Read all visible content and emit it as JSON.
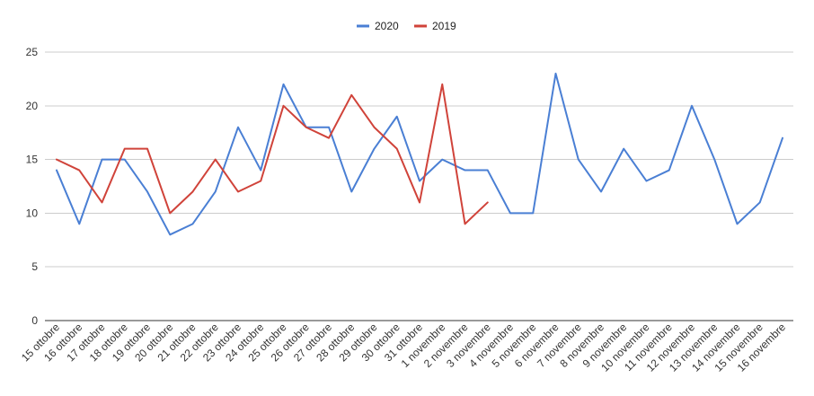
{
  "chart_data": {
    "type": "line",
    "categories": [
      "15 ottobre",
      "16 ottobre",
      "17 ottobre",
      "18 ottobre",
      "19 ottobre",
      "20 ottobre",
      "21 ottobre",
      "22 ottobre",
      "23 ottobre",
      "24 ottobre",
      "25 ottobre",
      "26 ottobre",
      "27 ottobre",
      "28 ottobre",
      "29 ottobre",
      "30 ottobre",
      "31 ottobre",
      "1 novembre",
      "2 novembre",
      "3 novembre",
      "4 novembre",
      "5 novembre",
      "6 novembre",
      "7 novembre",
      "8 novembre",
      "9 novembre",
      "10 novembre",
      "11 novembre",
      "12 novembre",
      "13 novembre",
      "14 novembre",
      "15 novembre",
      "16 novembre"
    ],
    "series": [
      {
        "name": "2020",
        "color": "#4a7fd4",
        "values": [
          14,
          9,
          15,
          15,
          12,
          8,
          9,
          12,
          18,
          14,
          22,
          18,
          18,
          12,
          16,
          19,
          13,
          15,
          14,
          14,
          10,
          10,
          23,
          15,
          12,
          16,
          13,
          14,
          20,
          15,
          9,
          11,
          17
        ]
      },
      {
        "name": "2019",
        "color": "#d0433a",
        "values": [
          15,
          14,
          11,
          16,
          16,
          10,
          12,
          15,
          12,
          13,
          20,
          18,
          17,
          21,
          18,
          16,
          11,
          22,
          9,
          11,
          null,
          null,
          null,
          null,
          null,
          null,
          null,
          null,
          null,
          null,
          null,
          null,
          null
        ]
      }
    ],
    "ylim": [
      0,
      25
    ],
    "yticks": [
      0,
      5,
      10,
      15,
      20,
      25
    ],
    "grid": true,
    "legend_position": "top-center",
    "title": "",
    "xlabel": "",
    "ylabel": ""
  }
}
